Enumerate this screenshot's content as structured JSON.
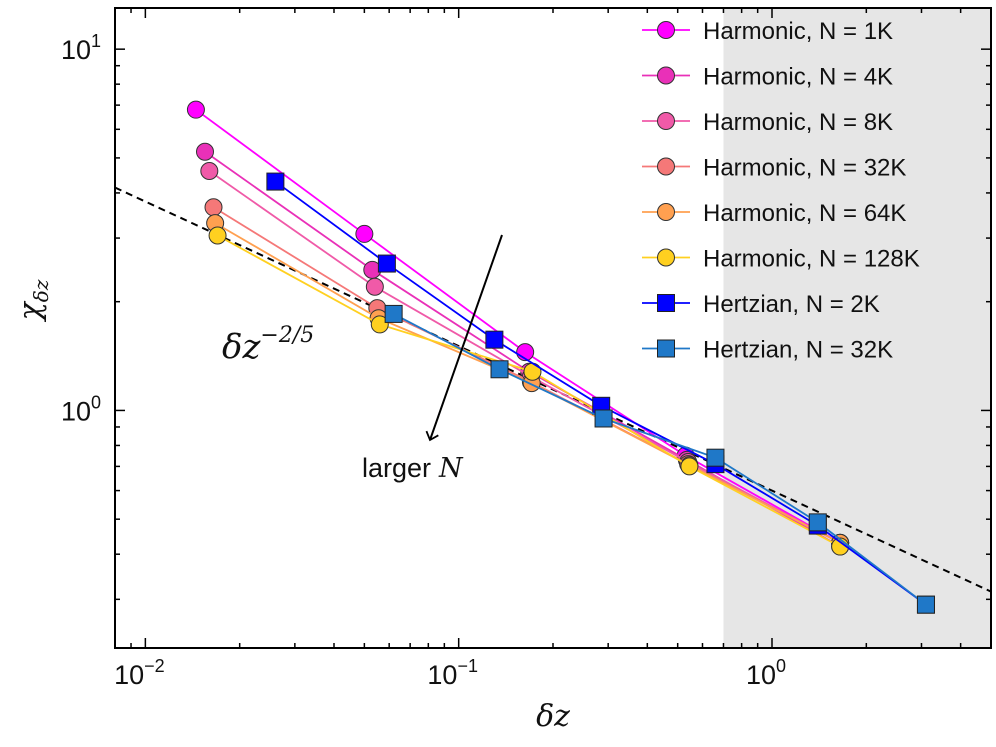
{
  "chart_data": {
    "type": "scatter",
    "xscale": "log",
    "yscale": "log",
    "xlim": [
      0.008,
      5.0
    ],
    "ylim": [
      0.22,
      13.0
    ],
    "xlabel": "δz",
    "ylabel_main": "χ",
    "ylabel_sub": "δz",
    "x_ticks": [
      {
        "value": 0.01,
        "base": "10",
        "exp": "−2"
      },
      {
        "value": 0.1,
        "base": "10",
        "exp": "−1"
      },
      {
        "value": 1.0,
        "base": "10",
        "exp": "0"
      }
    ],
    "y_ticks": [
      {
        "value": 1.0,
        "base": "10",
        "exp": "0"
      },
      {
        "value": 10.0,
        "base": "10",
        "exp": "1"
      }
    ],
    "shaded_region": {
      "x_from": 0.7,
      "x_to": 5.0,
      "color": "#e6e6e6"
    },
    "fit_line": {
      "prefactor": 0.6,
      "exponent": -0.4,
      "style": "dashed",
      "color": "#000000"
    },
    "series": [
      {
        "name": "Harmonic, N = 1K",
        "marker": "circle",
        "color": "#ff00ff",
        "points": [
          [
            0.0145,
            6.8
          ],
          [
            0.05,
            3.08
          ],
          [
            0.163,
            1.45
          ],
          [
            0.53,
            0.75
          ],
          [
            1.65,
            0.43
          ]
        ]
      },
      {
        "name": "Harmonic, N = 4K",
        "marker": "circle",
        "color": "#e930b8",
        "points": [
          [
            0.0155,
            5.2
          ],
          [
            0.053,
            2.45
          ],
          [
            0.168,
            1.28
          ],
          [
            0.535,
            0.73
          ],
          [
            1.65,
            0.42
          ]
        ]
      },
      {
        "name": "Harmonic, N = 8K",
        "marker": "circle",
        "color": "#f05aa8",
        "points": [
          [
            0.016,
            4.6
          ],
          [
            0.054,
            2.2
          ],
          [
            0.17,
            1.24
          ],
          [
            0.54,
            0.72
          ],
          [
            1.65,
            0.43
          ]
        ]
      },
      {
        "name": "Harmonic, N = 32K",
        "marker": "circle",
        "color": "#f57878",
        "points": [
          [
            0.0165,
            3.65
          ],
          [
            0.055,
            1.92
          ],
          [
            0.17,
            1.2
          ],
          [
            0.54,
            0.71
          ],
          [
            1.65,
            0.43
          ]
        ]
      },
      {
        "name": "Harmonic, N = 64K",
        "marker": "circle",
        "color": "#ffa050",
        "points": [
          [
            0.0167,
            3.3
          ],
          [
            0.0555,
            1.8
          ],
          [
            0.171,
            1.19
          ],
          [
            0.545,
            0.705
          ],
          [
            1.65,
            0.43
          ]
        ]
      },
      {
        "name": "Harmonic, N = 128K",
        "marker": "circle",
        "color": "#ffd020",
        "points": [
          [
            0.017,
            3.05
          ],
          [
            0.056,
            1.73
          ],
          [
            0.172,
            1.28
          ],
          [
            0.545,
            0.7
          ],
          [
            1.65,
            0.42
          ]
        ]
      },
      {
        "name": "Hertzian, N = 2K",
        "marker": "square",
        "color": "#0000ff",
        "points": [
          [
            0.026,
            4.3
          ],
          [
            0.059,
            2.55
          ],
          [
            0.13,
            1.57
          ],
          [
            0.285,
            1.03
          ],
          [
            0.66,
            0.71
          ],
          [
            1.4,
            0.48
          ],
          [
            3.1,
            0.29
          ]
        ]
      },
      {
        "name": "Hertzian, N = 32K",
        "marker": "square",
        "color": "#1f78c8",
        "points": [
          [
            0.062,
            1.85
          ],
          [
            0.135,
            1.3
          ],
          [
            0.29,
            0.95
          ],
          [
            0.66,
            0.74
          ],
          [
            1.4,
            0.49
          ],
          [
            3.1,
            0.29
          ]
        ]
      }
    ],
    "annotations": {
      "fit_label_main": "δz",
      "fit_label_exp": "−2/5",
      "arrow_text": "larger",
      "arrow_var": "N"
    }
  }
}
